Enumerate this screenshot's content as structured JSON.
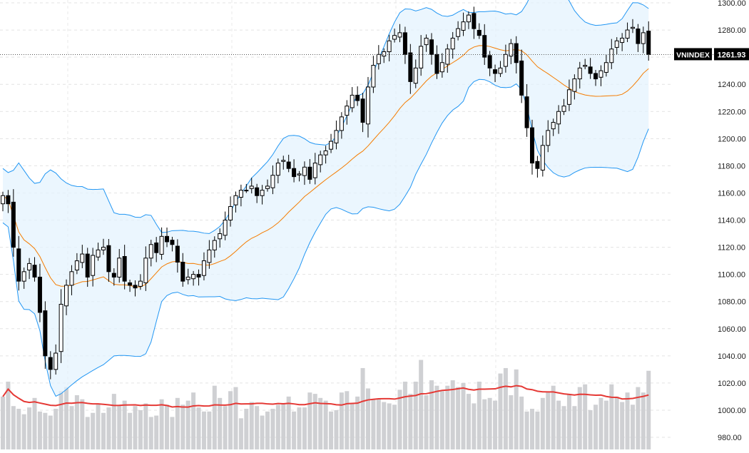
{
  "chart_data": {
    "type": "candlestick",
    "symbol": "VNINDEX",
    "last_price_label": "1261.93",
    "last_price": 1261.93,
    "y_axis": {
      "ticks": [
        "1300.00",
        "1280.00",
        "1260.00",
        "1240.00",
        "1220.00",
        "1200.00",
        "1180.00",
        "1160.00",
        "1140.00",
        "1120.00",
        "1100.00",
        "1080.00",
        "1060.00",
        "1040.00",
        "1020.00",
        "1000.00",
        "980.00"
      ],
      "range": [
        975,
        1301
      ]
    },
    "grid": true,
    "colors": {
      "up_candle": "#ffffff",
      "down_candle": "#000000",
      "candle_outline": "#000000",
      "bollinger_band": "#2196f3",
      "band_fill": "#e3f2fd",
      "middle_band": "#f57c00",
      "volume_bar": "#cfd0d3",
      "volume_ma": "#e53935",
      "price_tag_bg": "#000000",
      "price_tag_text": "#ffffff"
    },
    "close": [
      1158,
      1152,
      1120,
      1095,
      1102,
      1108,
      1098,
      1072,
      1040,
      1030,
      1042,
      1078,
      1092,
      1102,
      1110,
      1115,
      1098,
      1114,
      1118,
      1120,
      1102,
      1098,
      1112,
      1095,
      1092,
      1090,
      1095,
      1112,
      1122,
      1116,
      1128,
      1124,
      1122,
      1109,
      1095,
      1098,
      1100,
      1098,
      1110,
      1118,
      1125,
      1130,
      1140,
      1150,
      1158,
      1162,
      1162,
      1165,
      1158,
      1162,
      1165,
      1173,
      1182,
      1184,
      1178,
      1172,
      1174,
      1179,
      1170,
      1182,
      1188,
      1191,
      1198,
      1206,
      1216,
      1224,
      1232,
      1228,
      1212,
      1238,
      1254,
      1262,
      1264,
      1272,
      1276,
      1278,
      1262,
      1242,
      1252,
      1268,
      1274,
      1262,
      1248,
      1256,
      1266,
      1274,
      1281,
      1286,
      1291,
      1281,
      1276,
      1260,
      1252,
      1248,
      1252,
      1262,
      1270,
      1256,
      1232,
      1208,
      1182,
      1178,
      1195,
      1206,
      1212,
      1220,
      1224,
      1236,
      1244,
      1252,
      1254,
      1248,
      1244,
      1250,
      1256,
      1266,
      1272,
      1274,
      1280,
      1282,
      1270,
      1278,
      1262
    ],
    "volume": [
      1010,
      1021,
      1003,
      1001,
      997,
      1002,
      1009,
      999,
      998,
      996,
      1001,
      1014,
      1017,
      1003,
      1011,
      1008,
      995,
      998,
      1005,
      998,
      1002,
      1012,
      1004,
      1007,
      998,
      1003,
      1000,
      1005,
      995,
      996,
      1008,
      1004,
      995,
      1009,
      1004,
      1007,
      1013,
      1002,
      999,
      999,
      1018,
      1009,
      1003,
      1014,
      1017,
      994,
      1001,
      1006,
      1003,
      996,
      999,
      1001,
      1004,
      1005,
      1010,
      999,
      1002,
      1002,
      1013,
      1012,
      1009,
      1007,
      999,
      1000,
      1013,
      1014,
      1005,
      1010,
      1031,
      1016,
      1008,
      1008,
      1006,
      1005,
      1004,
      1015,
      1021,
      1012,
      1021,
      1037,
      1011,
      1022,
      1018,
      1014,
      1018,
      1022,
      1017,
      1020,
      1012,
      1005,
      1021,
      1008,
      1009,
      1007,
      1027,
      1031,
      1011,
      1030,
      1010,
      999,
      1001,
      999,
      1009,
      1013,
      1018,
      1007,
      1003,
      1012,
      1003,
      1017,
      1019,
      1000,
      1004,
      1009,
      1007,
      1019,
      1010,
      1006,
      1013,
      1004,
      1017,
      1013,
      1029
    ],
    "bollinger": {
      "period": 20,
      "std_dev": 2
    },
    "volume_ma_period": 20
  }
}
